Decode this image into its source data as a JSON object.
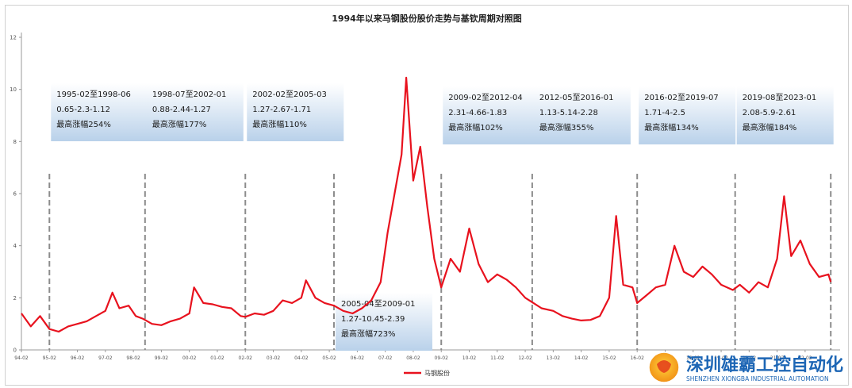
{
  "chart_data": {
    "type": "line",
    "title": "1994年以来马钢股份股价走势与基钦周期对照图",
    "xlabel": "",
    "ylabel": "",
    "ylim": [
      0,
      12
    ],
    "yticks": [
      0,
      2,
      4,
      6,
      8,
      10,
      12
    ],
    "xticks": [
      "94-02",
      "95-02",
      "96-02",
      "97-02",
      "98-02",
      "99-02",
      "00-02",
      "01-02",
      "02-02",
      "03-02",
      "04-02",
      "05-02",
      "06-02",
      "07-02",
      "08-02",
      "09-02",
      "10-02",
      "11-02",
      "12-02",
      "13-02",
      "14-02",
      "15-02",
      "16-02",
      "17-02",
      "18-02",
      "19-02",
      "20-02",
      "21-02",
      "22-02"
    ],
    "grid": false,
    "legend_position": "bottom-center",
    "series": [
      {
        "name": "马钢股份",
        "color": "#e8121e",
        "x": [
          "1994-02",
          "1994-06",
          "1994-10",
          "1995-02",
          "1995-06",
          "1995-10",
          "1996-02",
          "1996-06",
          "1996-10",
          "1997-02",
          "1997-05",
          "1997-08",
          "1997-12",
          "1998-03",
          "1998-06",
          "1998-10",
          "1999-02",
          "1999-06",
          "1999-10",
          "2000-02",
          "2000-04",
          "2000-08",
          "2000-12",
          "2001-04",
          "2001-08",
          "2001-12",
          "2002-02",
          "2002-06",
          "2002-10",
          "2003-02",
          "2003-06",
          "2003-10",
          "2004-02",
          "2004-04",
          "2004-08",
          "2004-12",
          "2005-04",
          "2005-08",
          "2005-12",
          "2006-04",
          "2006-08",
          "2006-12",
          "2007-03",
          "2007-06",
          "2007-09",
          "2007-11",
          "2008-02",
          "2008-05",
          "2008-08",
          "2008-11",
          "2009-02",
          "2009-06",
          "2009-10",
          "2010-02",
          "2010-06",
          "2010-10",
          "2011-02",
          "2011-06",
          "2011-10",
          "2012-02",
          "2012-05",
          "2012-09",
          "2013-02",
          "2013-06",
          "2013-10",
          "2014-02",
          "2014-06",
          "2014-10",
          "2015-02",
          "2015-05",
          "2015-08",
          "2015-12",
          "2016-02",
          "2016-06",
          "2016-10",
          "2017-02",
          "2017-06",
          "2017-10",
          "2018-02",
          "2018-06",
          "2018-10",
          "2019-02",
          "2019-07",
          "2019-10",
          "2020-02",
          "2020-06",
          "2020-10",
          "2021-02",
          "2021-05",
          "2021-08",
          "2021-12",
          "2022-04",
          "2022-08",
          "2022-12",
          "2023-01"
        ],
        "values": [
          1.4,
          0.9,
          1.3,
          0.8,
          0.7,
          0.9,
          1.0,
          1.1,
          1.3,
          1.5,
          2.2,
          1.6,
          1.7,
          1.3,
          1.2,
          1.0,
          0.95,
          1.1,
          1.2,
          1.4,
          2.4,
          1.8,
          1.75,
          1.65,
          1.6,
          1.3,
          1.27,
          1.4,
          1.35,
          1.5,
          1.9,
          1.8,
          2.0,
          2.67,
          2.0,
          1.8,
          1.7,
          1.5,
          1.4,
          1.6,
          1.9,
          2.6,
          4.5,
          6.0,
          7.5,
          10.45,
          6.5,
          7.8,
          5.5,
          3.5,
          2.4,
          3.5,
          3.0,
          4.66,
          3.3,
          2.6,
          2.9,
          2.7,
          2.4,
          2.0,
          1.83,
          1.6,
          1.5,
          1.3,
          1.2,
          1.13,
          1.15,
          1.3,
          2.0,
          5.14,
          2.5,
          2.4,
          1.8,
          2.1,
          2.4,
          2.5,
          4.0,
          3.0,
          2.8,
          3.2,
          2.9,
          2.5,
          2.3,
          2.5,
          2.2,
          2.6,
          2.4,
          3.5,
          5.9,
          3.6,
          4.2,
          3.3,
          2.8,
          2.9,
          2.61
        ]
      }
    ],
    "annotations": [
      {
        "line1": "1995-02至1998-06",
        "line2": "0.65-2.3-1.12",
        "line3": "最高涨幅254%"
      },
      {
        "line1": "1998-07至2002-01",
        "line2": "0.88-2.44-1.27",
        "line3": "最高涨幅177%"
      },
      {
        "line1": "2002-02至2005-03",
        "line2": "1.27-2.67-1.71",
        "line3": "最高涨幅110%"
      },
      {
        "line1": "2005-04至2009-01",
        "line2": "1.27-10.45-2.39",
        "line3": "最高涨幅723%"
      },
      {
        "line1": "2009-02至2012-04",
        "line2": "2.31-4.66-1.83",
        "line3": "最高涨幅102%"
      },
      {
        "line1": "2012-05至2016-01",
        "line2": "1.13-5.14-2.28",
        "line3": "最高涨幅355%"
      },
      {
        "line1": "2016-02至2019-07",
        "line2": "1.71-4-2.5",
        "line3": "最高涨幅134%"
      },
      {
        "line1": "2019-08至2023-01",
        "line2": "2.08-5.9-2.61",
        "line3": "最高涨幅184%"
      }
    ],
    "dividers": [
      "1995-02",
      "1998-07",
      "2002-02",
      "2005-04",
      "2009-02",
      "2012-05",
      "2016-02",
      "2019-08",
      "2023-01"
    ]
  },
  "watermark": {
    "name_cn": "深圳雄霸工控自动化",
    "name_en": "SHENZHEN XIONGBA INDUSTRIAL AUTOMATION",
    "logo_icon": "lion-logo-icon",
    "color": "#1d66b5"
  },
  "colors": {
    "line": "#e8121e",
    "divider": "#8c8c8c",
    "annotation_top": "#ffffff",
    "annotation_bottom": "#b9d1ea"
  }
}
